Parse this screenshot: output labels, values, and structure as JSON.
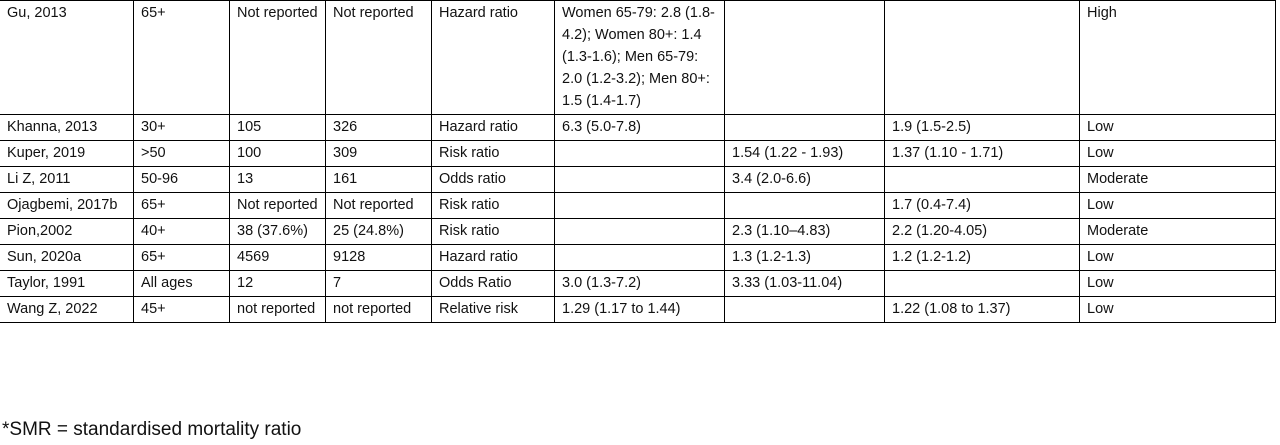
{
  "table": {
    "rows": [
      [
        "Gu, 2013",
        "65+",
        "Not reported",
        "Not reported",
        "Hazard ratio",
        "Women 65-79: 2.8 (1.8-4.2); Women 80+: 1.4 (1.3-1.6); Men 65-79: 2.0 (1.2-3.2); Men 80+: 1.5 (1.4-1.7)",
        null,
        null,
        "High"
      ],
      [
        "Khanna, 2013",
        "30+",
        "105",
        "326",
        "Hazard ratio",
        "6.3 (5.0-7.8)",
        null,
        "1.9 (1.5-2.5)",
        "Low"
      ],
      [
        "Kuper, 2019",
        ">50",
        "100",
        "309",
        "Risk ratio",
        null,
        "1.54 (1.22 - 1.93)",
        "1.37 (1.10 - 1.71)",
        "Low"
      ],
      [
        "Li Z, 2011",
        "50-96",
        "13",
        "161",
        "Odds ratio",
        null,
        "3.4 (2.0-6.6)",
        null,
        "Moderate"
      ],
      [
        "Ojagbemi, 2017b",
        "65+",
        "Not reported",
        "Not reported",
        "Risk ratio",
        null,
        null,
        "1.7 (0.4-7.4)",
        "Low"
      ],
      [
        "Pion,2002",
        "40+",
        "38 (37.6%)",
        "25 (24.8%)",
        "Risk ratio",
        null,
        "2.3 (1.10–4.83)",
        "2.2 (1.20-4.05)",
        "Moderate"
      ],
      [
        "Sun, 2020a",
        "65+",
        "4569",
        "9128",
        "Hazard ratio",
        null,
        "1.3 (1.2-1.3)",
        "1.2 (1.2-1.2)",
        "Low"
      ],
      [
        "Taylor, 1991",
        "All ages",
        "12",
        "7",
        "Odds Ratio",
        "3.0 (1.3-7.2)",
        "3.33 (1.03-11.04)",
        null,
        "Low"
      ],
      [
        "Wang Z, 2022",
        "45+",
        "not reported",
        "not reported",
        "Relative risk",
        "1.29 (1.17 to 1.44)",
        null,
        "1.22 (1.08 to 1.37)",
        "Low"
      ]
    ],
    "footnote": "*SMR = standardised mortality ratio"
  }
}
